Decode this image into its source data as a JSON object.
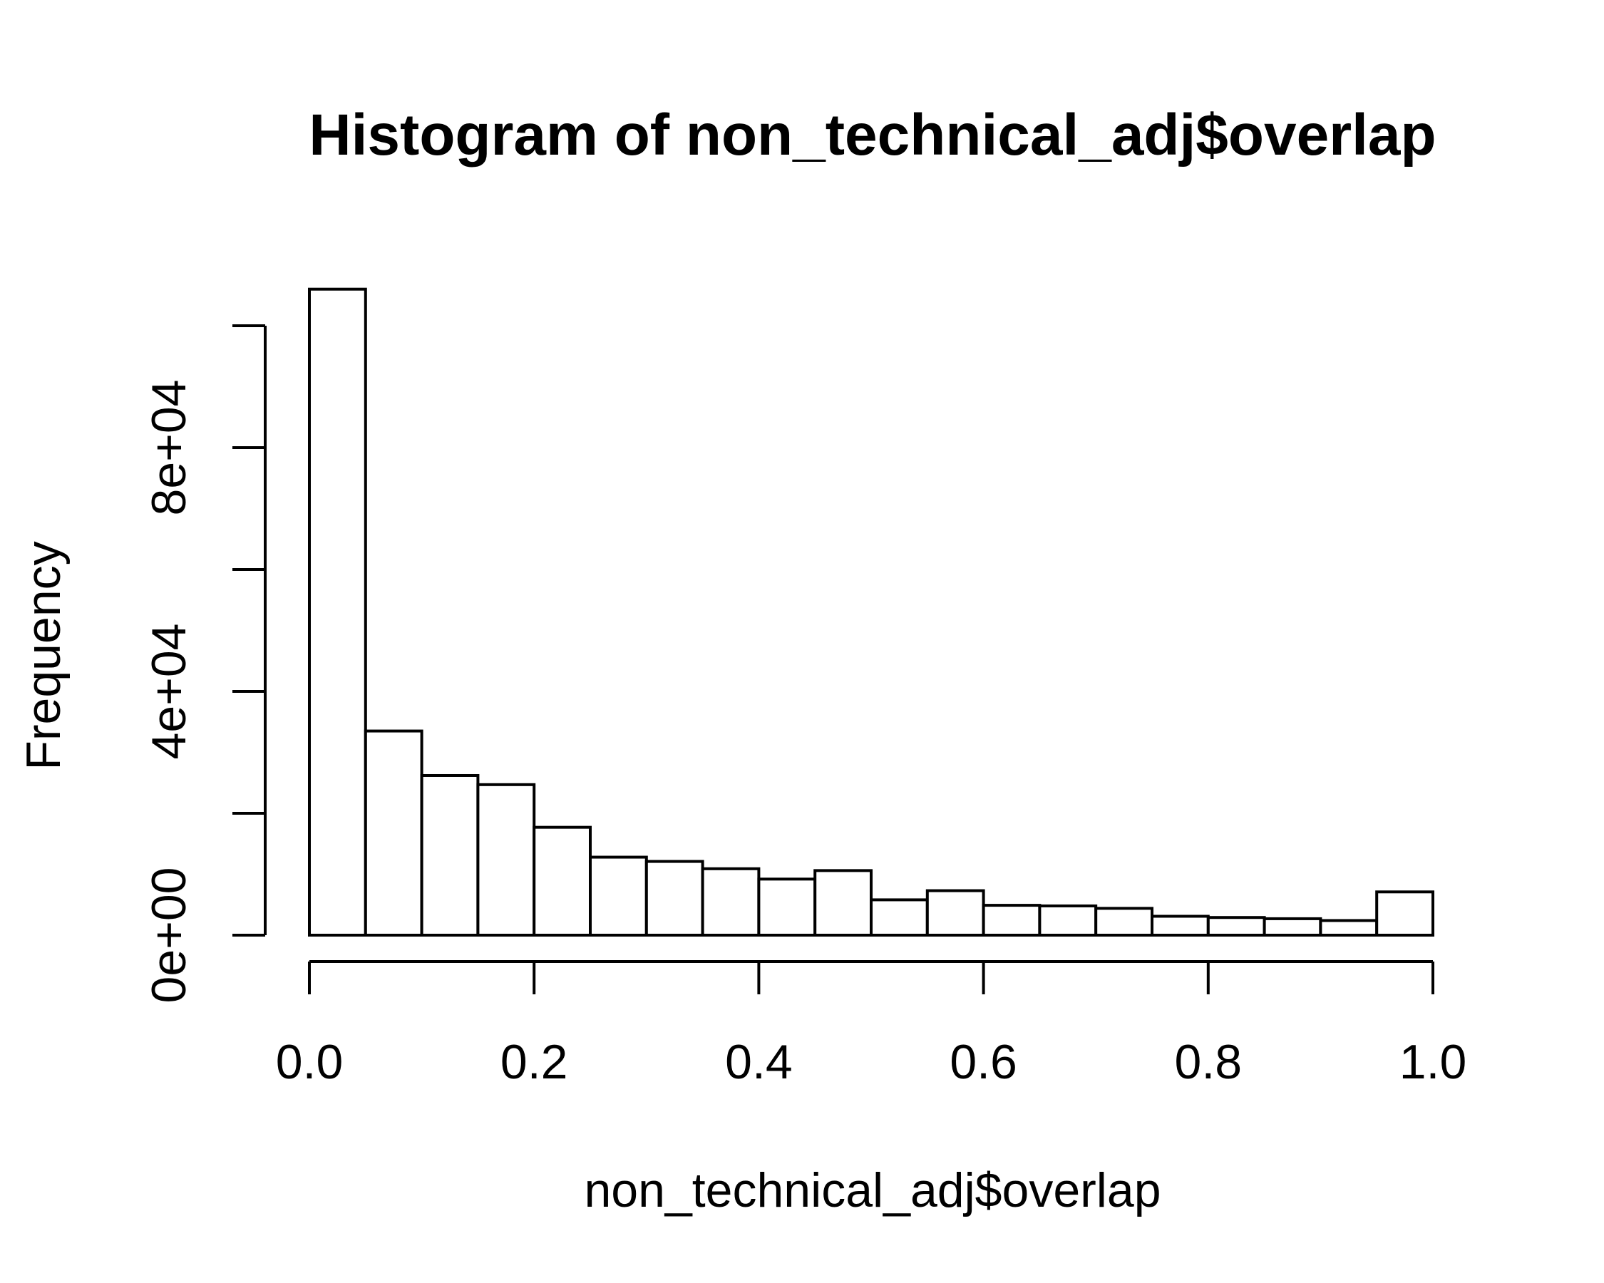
{
  "chart_data": {
    "type": "bar",
    "title": "Histogram of non_technical_adj$overlap",
    "xlabel": "non_technical_adj$overlap",
    "ylabel": "Frequency",
    "xlim": [
      0,
      1
    ],
    "ylim": [
      0,
      100000
    ],
    "grid": false,
    "bin_width": 0.05,
    "bins": [
      {
        "x0": 0.0,
        "x1": 0.05,
        "count": 106000
      },
      {
        "x0": 0.05,
        "x1": 0.1,
        "count": 33500
      },
      {
        "x0": 0.1,
        "x1": 0.15,
        "count": 26200
      },
      {
        "x0": 0.15,
        "x1": 0.2,
        "count": 24700
      },
      {
        "x0": 0.2,
        "x1": 0.25,
        "count": 17700
      },
      {
        "x0": 0.25,
        "x1": 0.3,
        "count": 12800
      },
      {
        "x0": 0.3,
        "x1": 0.35,
        "count": 12100
      },
      {
        "x0": 0.35,
        "x1": 0.4,
        "count": 10900
      },
      {
        "x0": 0.4,
        "x1": 0.45,
        "count": 9200
      },
      {
        "x0": 0.45,
        "x1": 0.5,
        "count": 10600
      },
      {
        "x0": 0.5,
        "x1": 0.55,
        "count": 5800
      },
      {
        "x0": 0.55,
        "x1": 0.6,
        "count": 7300
      },
      {
        "x0": 0.6,
        "x1": 0.65,
        "count": 4900
      },
      {
        "x0": 0.65,
        "x1": 0.7,
        "count": 4800
      },
      {
        "x0": 0.7,
        "x1": 0.75,
        "count": 4400
      },
      {
        "x0": 0.75,
        "x1": 0.8,
        "count": 3100
      },
      {
        "x0": 0.8,
        "x1": 0.85,
        "count": 2900
      },
      {
        "x0": 0.85,
        "x1": 0.9,
        "count": 2700
      },
      {
        "x0": 0.9,
        "x1": 0.95,
        "count": 2400
      },
      {
        "x0": 0.95,
        "x1": 1.0,
        "count": 7100
      }
    ],
    "x_ticks": [
      {
        "value": 0.0,
        "label": "0.0"
      },
      {
        "value": 0.2,
        "label": "0.2"
      },
      {
        "value": 0.4,
        "label": "0.4"
      },
      {
        "value": 0.6,
        "label": "0.6"
      },
      {
        "value": 0.8,
        "label": "0.8"
      },
      {
        "value": 1.0,
        "label": "1.0"
      }
    ],
    "y_ticks": [
      {
        "value": 0,
        "label": "0e+00"
      },
      {
        "value": 20000,
        "label": ""
      },
      {
        "value": 40000,
        "label": "4e+04"
      },
      {
        "value": 60000,
        "label": ""
      },
      {
        "value": 80000,
        "label": "8e+04"
      },
      {
        "value": 100000,
        "label": ""
      }
    ]
  }
}
